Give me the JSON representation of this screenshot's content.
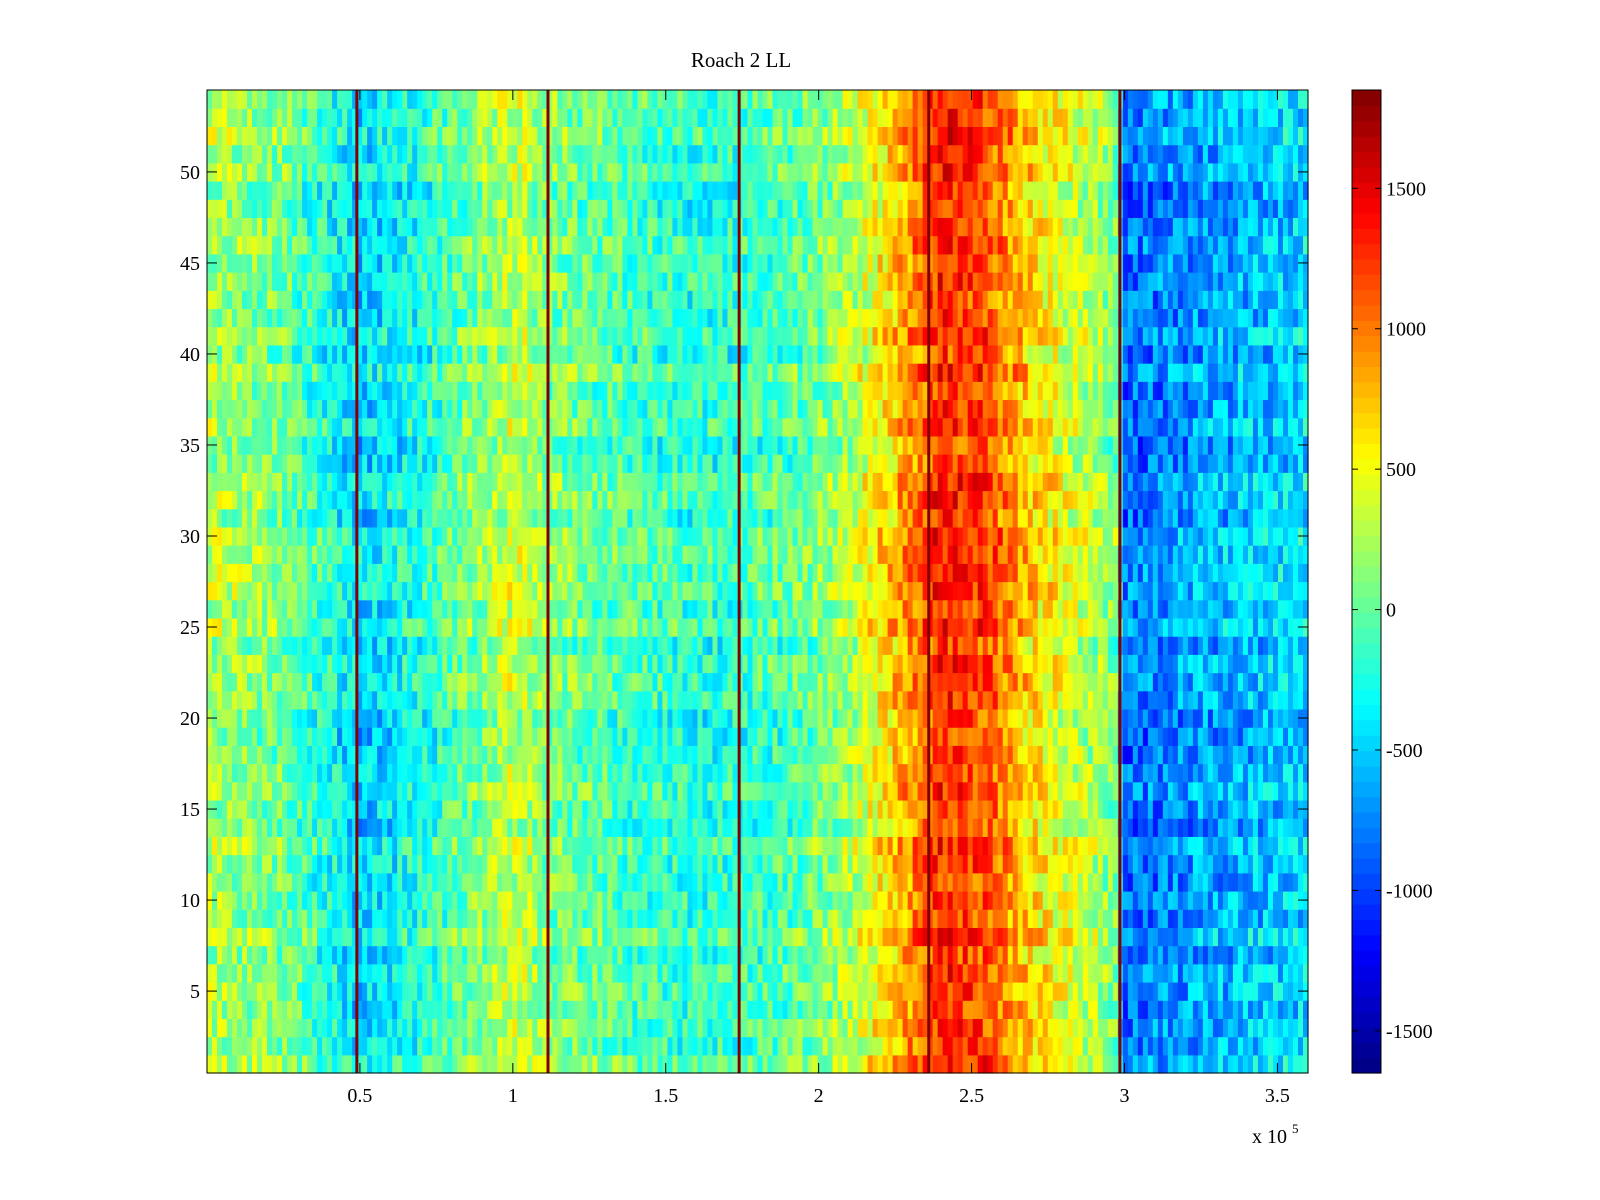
{
  "chart_data": {
    "type": "heatmap",
    "title": "Roach 2 LL",
    "xlabel": "",
    "ylabel": "",
    "x_exponent_label": "x 10",
    "x_exponent_power": "5",
    "xlim": [
      0,
      3.6
    ],
    "ylim": [
      0.5,
      54.5
    ],
    "xticks": [
      0.5,
      1,
      1.5,
      2,
      2.5,
      3,
      3.5
    ],
    "xtick_labels": [
      "0.5",
      "1",
      "1.5",
      "2",
      "2.5",
      "3",
      "3.5"
    ],
    "yticks": [
      5,
      10,
      15,
      20,
      25,
      30,
      35,
      40,
      45,
      50
    ],
    "ytick_labels": [
      "5",
      "10",
      "15",
      "20",
      "25",
      "30",
      "35",
      "40",
      "45",
      "50"
    ],
    "rows": 54,
    "colormap": "jet",
    "color_range": [
      -1650,
      1850
    ],
    "colorbar_ticks": [
      -1500,
      -1000,
      -500,
      0,
      500,
      1000,
      1500
    ],
    "colorbar_labels": [
      "-1500",
      "-1000",
      "-500",
      "0",
      "500",
      "1000",
      "1500"
    ],
    "vertical_lines": [
      0.49,
      1.115,
      1.74,
      2.36,
      2.985
    ],
    "column_profile": [
      {
        "x": 0.0,
        "value": 250
      },
      {
        "x": 0.25,
        "value": 80
      },
      {
        "x": 0.5,
        "value": -480
      },
      {
        "x": 0.7,
        "value": -250
      },
      {
        "x": 0.9,
        "value": 150
      },
      {
        "x": 1.0,
        "value": 350
      },
      {
        "x": 1.12,
        "value": 100
      },
      {
        "x": 1.4,
        "value": -100
      },
      {
        "x": 1.6,
        "value": -200
      },
      {
        "x": 1.75,
        "value": -150
      },
      {
        "x": 1.95,
        "value": 0
      },
      {
        "x": 2.1,
        "value": 250
      },
      {
        "x": 2.25,
        "value": 750
      },
      {
        "x": 2.4,
        "value": 1300
      },
      {
        "x": 2.55,
        "value": 1150
      },
      {
        "x": 2.7,
        "value": 650
      },
      {
        "x": 2.9,
        "value": 250
      },
      {
        "x": 2.97,
        "value": 100
      },
      {
        "x": 3.0,
        "value": -850
      },
      {
        "x": 3.25,
        "value": -650
      },
      {
        "x": 3.6,
        "value": -450
      }
    ]
  }
}
